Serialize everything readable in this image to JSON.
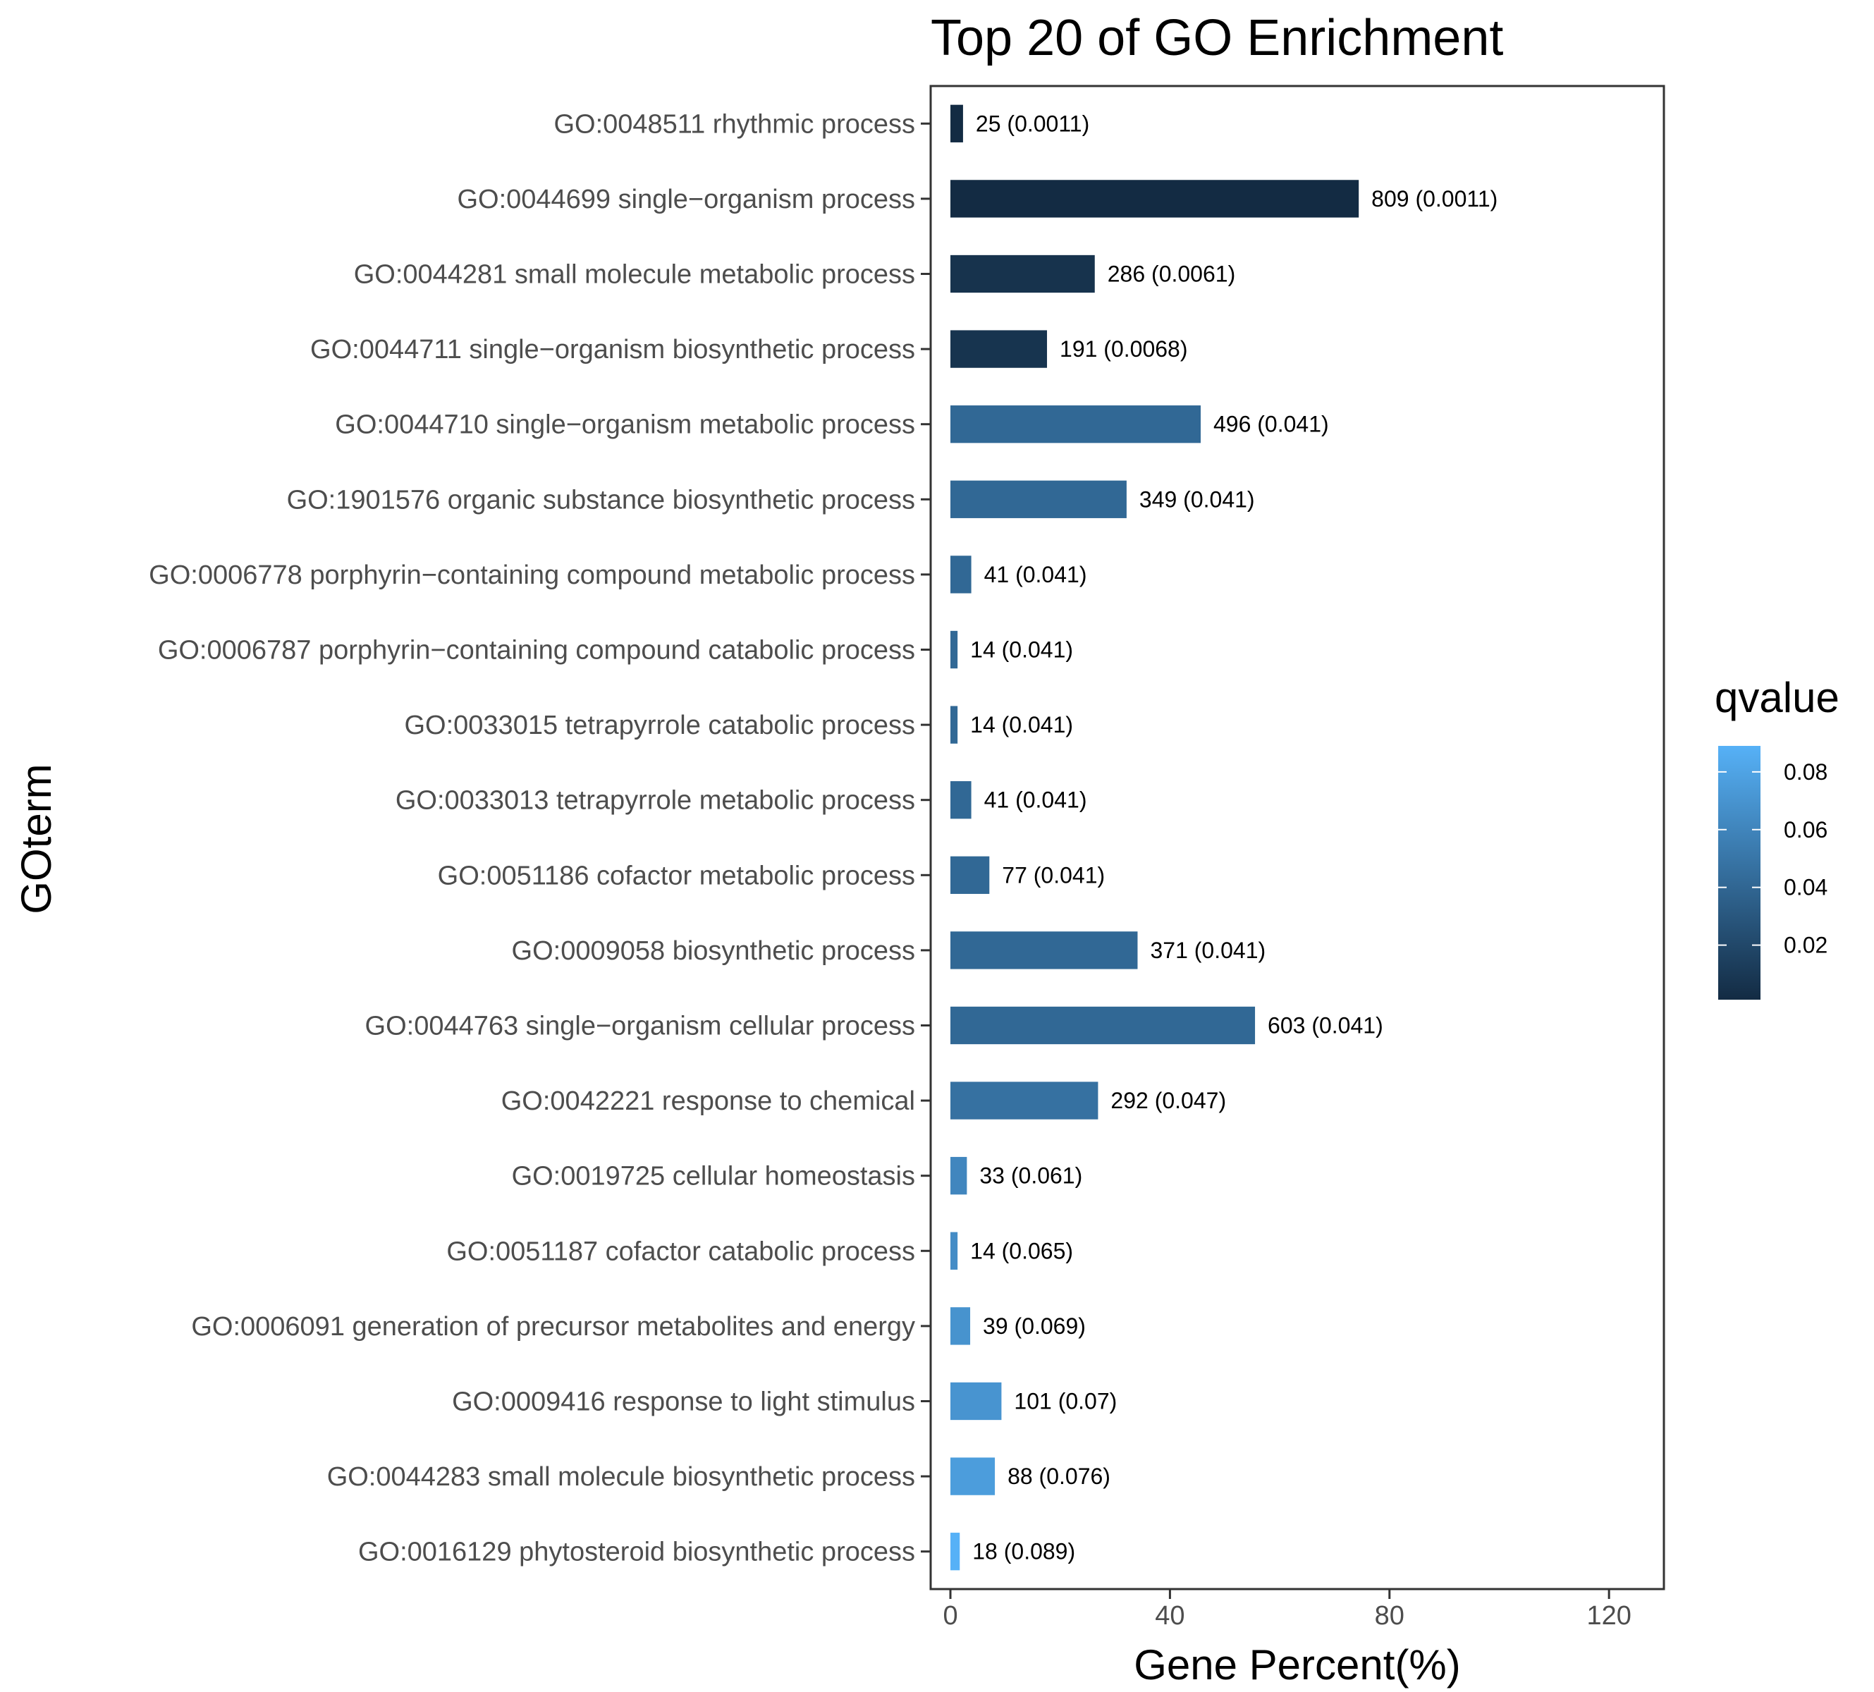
{
  "chart_data": {
    "type": "bar",
    "orientation": "horizontal",
    "title": "Top 20 of GO Enrichment",
    "xlabel": "Gene Percent(%)",
    "ylabel": "GOterm",
    "xlim": [
      -3.6,
      130
    ],
    "xticks": [
      0,
      40,
      80,
      120
    ],
    "grid": false,
    "legend": {
      "title": "qvalue",
      "position": "right",
      "range": [
        0.0011,
        0.089
      ],
      "ticks": [
        0.02,
        0.04,
        0.06,
        0.08
      ],
      "color_low": "#132B43",
      "color_high": "#56B1F7"
    },
    "categories": [
      "GO:0048511 rhythmic process",
      "GO:0044699 single−organism process",
      "GO:0044281 small molecule metabolic process",
      "GO:0044711 single−organism biosynthetic process",
      "GO:0044710 single−organism metabolic process",
      "GO:1901576 organic substance biosynthetic process",
      "GO:0006778 porphyrin−containing compound metabolic process",
      "GO:0006787 porphyrin−containing compound catabolic process",
      "GO:0033015 tetrapyrrole catabolic process",
      "GO:0033013 tetrapyrrole metabolic process",
      "GO:0051186 cofactor metabolic process",
      "GO:0009058 biosynthetic process",
      "GO:0044763 single−organism cellular process",
      "GO:0042221 response to chemical",
      "GO:0019725 cellular homeostasis",
      "GO:0051187 cofactor catabolic process",
      "GO:0006091 generation of precursor metabolites and energy",
      "GO:0009416 response to light stimulus",
      "GO:0044283 small molecule biosynthetic process",
      "GO:0016129 phytosteroid biosynthetic process"
    ],
    "values": [
      2.3,
      74.4,
      26.3,
      17.6,
      45.6,
      32.1,
      3.8,
      1.3,
      1.3,
      3.8,
      7.1,
      34.1,
      55.5,
      26.9,
      3.0,
      1.3,
      3.6,
      9.3,
      8.1,
      1.7
    ],
    "qvalues": [
      0.0011,
      0.0011,
      0.0061,
      0.0068,
      0.041,
      0.041,
      0.041,
      0.041,
      0.041,
      0.041,
      0.041,
      0.041,
      0.041,
      0.047,
      0.061,
      0.065,
      0.069,
      0.07,
      0.076,
      0.089
    ],
    "bar_labels": [
      "25 (0.0011)",
      "809 (0.0011)",
      "286 (0.0061)",
      "191 (0.0068)",
      "496 (0.041)",
      "349 (0.041)",
      "41 (0.041)",
      "14 (0.041)",
      "14 (0.041)",
      "41 (0.041)",
      "77 (0.041)",
      "371 (0.041)",
      "603 (0.041)",
      "292 (0.047)",
      "33 (0.061)",
      "14 (0.065)",
      "39 (0.069)",
      "101 (0.07)",
      "88 (0.076)",
      "18 (0.089)"
    ]
  }
}
